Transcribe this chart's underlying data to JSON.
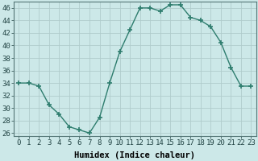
{
  "x": [
    0,
    1,
    2,
    3,
    4,
    5,
    6,
    7,
    8,
    9,
    10,
    11,
    12,
    13,
    14,
    15,
    16,
    17,
    18,
    19,
    20,
    21,
    22,
    23
  ],
  "y": [
    34,
    34,
    33.5,
    30.5,
    29,
    27,
    26.5,
    26,
    28.5,
    34,
    39,
    42.5,
    46,
    46,
    45.5,
    46.5,
    46.5,
    44.5,
    44,
    43,
    40.5,
    36.5,
    33.5,
    33.5
  ],
  "line_color": "#2e7d6e",
  "marker": "+",
  "marker_size": 4,
  "bg_color": "#cce8e8",
  "grid_color": "#b0cccc",
  "xlabel": "Humidex (Indice chaleur)",
  "xlabel_fontsize": 7.5,
  "ylim": [
    25.5,
    47
  ],
  "yticks": [
    26,
    28,
    30,
    32,
    34,
    36,
    38,
    40,
    42,
    44,
    46
  ],
  "xticks": [
    0,
    1,
    2,
    3,
    4,
    5,
    6,
    7,
    8,
    9,
    10,
    11,
    12,
    13,
    14,
    15,
    16,
    17,
    18,
    19,
    20,
    21,
    22,
    23
  ],
  "tick_fontsize": 6.5,
  "line_width": 1.0
}
